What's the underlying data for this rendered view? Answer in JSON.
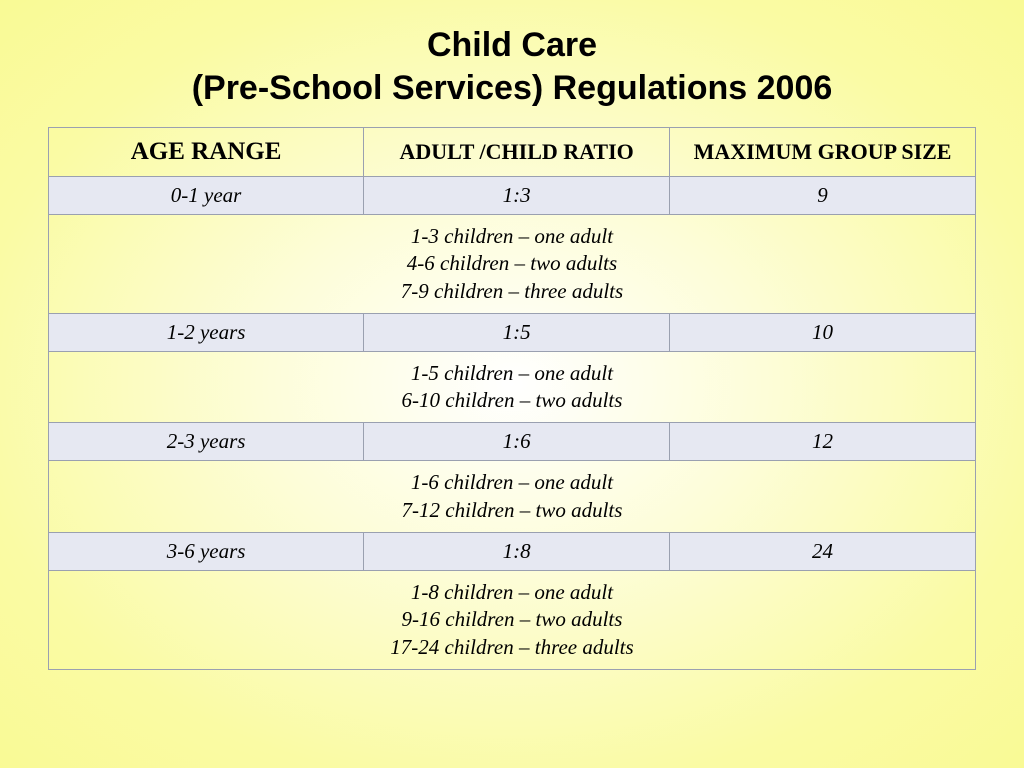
{
  "title_line1": "Child Care",
  "title_line2": "(Pre-School Services) Regulations 2006",
  "table": {
    "headers": {
      "age_range": "AGE RANGE",
      "ratio": "ADULT /CHILD RATIO",
      "max_group": "MAXIMUM GROUP SIZE"
    },
    "col_widths": [
      "34%",
      "33%",
      "33%"
    ],
    "colors": {
      "data_row_bg": "#e6e8f2",
      "border": "#9aa0b0",
      "text": "#000000"
    },
    "fontsize": {
      "header": 22,
      "header_age": 25,
      "cell": 21
    },
    "rows": [
      {
        "age": "0-1 year",
        "ratio": "1:3",
        "max": "9",
        "details": [
          "1-3 children – one adult",
          "4-6 children – two adults",
          "7-9 children – three adults"
        ]
      },
      {
        "age": "1-2 years",
        "ratio": "1:5",
        "max": "10",
        "details": [
          "1-5 children – one adult",
          "6-10 children – two adults"
        ]
      },
      {
        "age": "2-3 years",
        "ratio": "1:6",
        "max": "12",
        "details": [
          "1-6 children – one adult",
          "7-12 children – two adults"
        ]
      },
      {
        "age": "3-6 years",
        "ratio": "1:8",
        "max": "24",
        "details": [
          "1-8 children – one adult",
          "9-16 children – two adults",
          "17-24 children – three adults"
        ]
      }
    ]
  }
}
